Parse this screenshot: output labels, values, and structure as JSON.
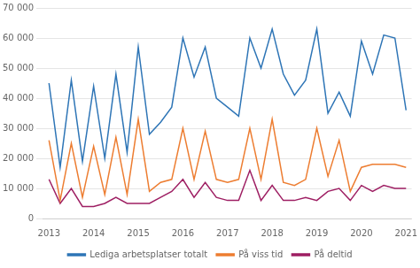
{
  "chart_data": {
    "type": "line",
    "categories": [
      "2013",
      null,
      null,
      null,
      "2014",
      null,
      null,
      null,
      "2015",
      null,
      null,
      null,
      "2016",
      null,
      null,
      null,
      "2017",
      null,
      null,
      null,
      "2018",
      null,
      null,
      null,
      "2019",
      null,
      null,
      null,
      "2020",
      null,
      null,
      null,
      "2021"
    ],
    "series": [
      {
        "name": "Lediga arbetsplatser totalt",
        "color": "#2E75B6",
        "values": [
          45000,
          17000,
          46000,
          19000,
          44000,
          20000,
          48000,
          22000,
          57000,
          28000,
          32000,
          37000,
          60000,
          47000,
          57000,
          40000,
          37000,
          34000,
          60000,
          50000,
          63000,
          48000,
          41000,
          46000,
          63000,
          35000,
          42000,
          34000,
          59000,
          48000,
          61000,
          60000,
          36000
        ]
      },
      {
        "name": "På viss tid",
        "color": "#ED7D31",
        "values": [
          26000,
          6000,
          25000,
          7000,
          24000,
          8000,
          27000,
          8000,
          33000,
          9000,
          12000,
          13000,
          30000,
          13000,
          29000,
          13000,
          12000,
          13000,
          30000,
          13000,
          33000,
          12000,
          11000,
          13000,
          30000,
          14000,
          26000,
          9000,
          17000,
          18000,
          18000,
          18000,
          17000
        ]
      },
      {
        "name": "På deltid",
        "color": "#9E1F63",
        "values": [
          13000,
          5000,
          10000,
          4000,
          4000,
          5000,
          7000,
          5000,
          5000,
          5000,
          7000,
          9000,
          13000,
          7000,
          12000,
          7000,
          6000,
          6000,
          16000,
          6000,
          11000,
          6000,
          6000,
          7000,
          6000,
          9000,
          10000,
          6000,
          11000,
          9000,
          11000,
          10000,
          10000
        ]
      }
    ],
    "ylim": [
      0,
      70000
    ],
    "yticks": [
      0,
      {
        "value": 10000,
        "label": "10 000"
      },
      {
        "value": 20000,
        "label": "20 000"
      },
      {
        "value": 30000,
        "label": "30 000"
      },
      {
        "value": 40000,
        "label": "40 000"
      },
      {
        "value": 50000,
        "label": "50 000"
      },
      {
        "value": 60000,
        "label": "60 000"
      },
      {
        "value": 70000,
        "label": "70 000"
      }
    ],
    "grid": "y",
    "legend": "bottom"
  }
}
